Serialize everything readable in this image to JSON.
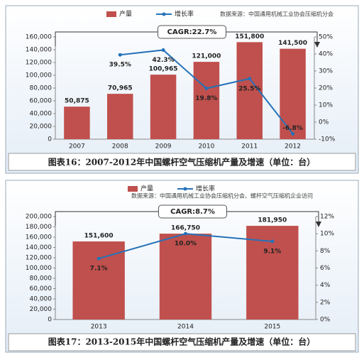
{
  "chart_data": [
    {
      "type": "bar-line",
      "caption": "图表16：2007-2012年中国螺杆空气压缩机产量及增速（单位：台）",
      "source": "数据来源：中国通用机械工业协会压缩机分会",
      "annotation": "CAGR:22.7%",
      "categories": [
        "2007",
        "2008",
        "2009",
        "2010",
        "2011",
        "2012"
      ],
      "series": [
        {
          "name": "产量",
          "color": "#c0504d",
          "values": [
            50875,
            70965,
            100965,
            121000,
            151800,
            141500
          ],
          "value_labels": [
            "50,875",
            "70,965",
            "100,965",
            "121,000",
            "151,800",
            "141,500"
          ]
        },
        {
          "name": "增长率",
          "color": "#2572b8",
          "axis": "y2",
          "values": [
            null,
            39.5,
            42.3,
            19.8,
            25.5,
            -6.8
          ],
          "value_labels": [
            null,
            "39.5%",
            "42.3%",
            "19.8%",
            "25.5%",
            "-6.8%"
          ]
        }
      ],
      "ylim": [
        0,
        160000
      ],
      "yticks": [
        0,
        {
          "value": 20000,
          "label": "20,000"
        },
        {
          "value": 40000,
          "label": "40,000"
        },
        {
          "value": 60000,
          "label": "60,000"
        },
        {
          "value": 80000,
          "label": "80,000"
        },
        {
          "value": 100000,
          "label": "100,000"
        },
        {
          "value": 120000,
          "label": "120,000"
        },
        {
          "value": 140000,
          "label": "140,000"
        },
        {
          "value": 160000,
          "label": "160,000"
        }
      ],
      "y2lim": [
        -10,
        50
      ],
      "y2ticks": [
        {
          "value": -10,
          "label": "-10%"
        },
        {
          "value": 0,
          "label": "0%"
        },
        {
          "value": 10,
          "label": "10%"
        },
        {
          "value": 20,
          "label": "20%"
        },
        {
          "value": 30,
          "label": "30%"
        },
        {
          "value": 40,
          "label": "40%"
        },
        {
          "value": 50,
          "label": "50%"
        }
      ]
    },
    {
      "type": "bar-line",
      "caption": "图表17：2013-2015年中国螺杆空气压缩机产量及增速（单位：台）",
      "source": "数据来源：中国通用机械工业协会压缩机分会、螺杆空气压缩机企业访问",
      "annotation": "CAGR:8.7%",
      "categories": [
        "2013",
        "2014",
        "2015"
      ],
      "series": [
        {
          "name": "产量",
          "color": "#c0504d",
          "values": [
            151600,
            166750,
            181950
          ],
          "value_labels": [
            "151,600",
            "166,750",
            "181,950"
          ]
        },
        {
          "name": "增长率",
          "color": "#2572b8",
          "axis": "y2",
          "values": [
            7.1,
            10.0,
            9.1
          ],
          "value_labels": [
            "7.1%",
            "10.0%",
            "9.1%"
          ]
        }
      ],
      "ylim": [
        0,
        200000
      ],
      "yticks": [
        0,
        {
          "value": 20000,
          "label": "20,000"
        },
        {
          "value": 40000,
          "label": "40,000"
        },
        {
          "value": 60000,
          "label": "60,000"
        },
        {
          "value": 80000,
          "label": "80,000"
        },
        {
          "value": 100000,
          "label": "100,000"
        },
        {
          "value": 120000,
          "label": "120,000"
        },
        {
          "value": 140000,
          "label": "140,000"
        },
        {
          "value": 160000,
          "label": "160,000"
        },
        {
          "value": 180000,
          "label": "180,000"
        },
        {
          "value": 200000,
          "label": "200,000"
        }
      ],
      "y2lim": [
        0,
        12
      ],
      "y2ticks": [
        {
          "value": 0,
          "label": "0%"
        },
        {
          "value": 2,
          "label": "2%"
        },
        {
          "value": 4,
          "label": "4%"
        },
        {
          "value": 6,
          "label": "6%"
        },
        {
          "value": 8,
          "label": "8%"
        },
        {
          "value": 10,
          "label": "10%"
        },
        {
          "value": 12,
          "label": "12%"
        }
      ]
    }
  ]
}
